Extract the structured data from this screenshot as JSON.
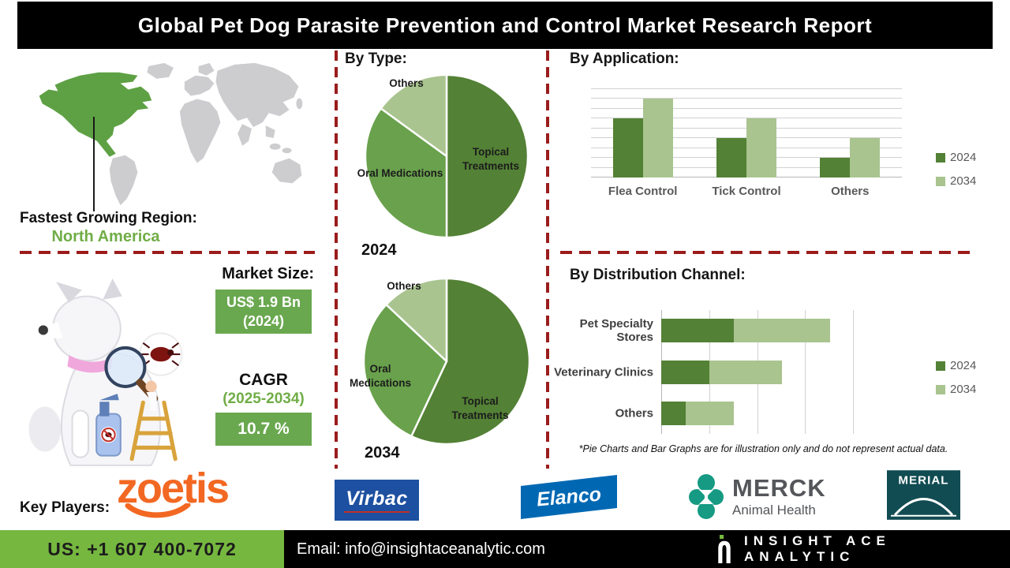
{
  "title": "Global Pet Dog Parasite Prevention and Control Market Research Report",
  "region": {
    "label": "Fastest Growing Region:",
    "value": "North America"
  },
  "market_size": {
    "label": "Market Size:",
    "value": "US$ 1.9 Bn",
    "year": "(2024)"
  },
  "cagr": {
    "label": "CAGR",
    "period": "(2025-2034)",
    "value": "10.7 %"
  },
  "key_players": {
    "label": "Key Players:",
    "companies": [
      "Zoetis",
      "Virbac",
      "Elanco",
      "Merck Animal Health",
      "Merial"
    ],
    "logo_text": {
      "zoetis": "zoetis",
      "virbac": "Virbac",
      "elanco": "Elanco",
      "merck": "MERCK",
      "merck_sub": "Animal Health",
      "merial": "MERIAL"
    }
  },
  "footnote": "*Pie Charts and Bar Graphs are for illustration only and do not represent actual data.",
  "footer": {
    "phone": "US: +1 607 400-7072",
    "email": "Email: info@insightaceanalytic.com",
    "brand": "INSIGHT ACE ANALYTIC"
  },
  "colors": {
    "title_bar": "#000000",
    "divider_red": "#9b1c1c",
    "series_2024": "#538135",
    "series_2034": "#a9c48f",
    "pie_mid_green": "#69a14c",
    "map_highlight_green": "#5ea144",
    "map_gray": "#cdcdd0",
    "value_box_green": "#6aa84f",
    "footer_green": "#76b83f",
    "zoetis_orange": "#f26822",
    "virbac_blue": "#1d50a0",
    "elanco_blue": "#0068b3",
    "merck_teal": "#169a83",
    "merial_teal": "#114c52"
  },
  "chart_data": [
    {
      "type": "pie",
      "title": "By Type:",
      "year_label": "2024",
      "slices": [
        {
          "label": "Topical Treatments",
          "value": 50,
          "color": "#538135"
        },
        {
          "label": "Oral Medications",
          "value": 35,
          "color": "#69a14c"
        },
        {
          "label": "Others",
          "value": 15,
          "color": "#a9c48f"
        }
      ]
    },
    {
      "type": "pie",
      "title": "By Type:",
      "year_label": "2034",
      "slices": [
        {
          "label": "Topical Treatments",
          "value": 57,
          "color": "#538135"
        },
        {
          "label": "Oral Medications",
          "value": 30,
          "color": "#69a14c"
        },
        {
          "label": "Others",
          "value": 13,
          "color": "#a9c48f"
        }
      ]
    },
    {
      "type": "bar",
      "title": "By Application:",
      "categories": [
        "Flea Control",
        "Tick Control",
        "Others"
      ],
      "series": [
        {
          "name": "2024",
          "color": "#538135",
          "values": [
            6,
            4,
            2
          ]
        },
        {
          "name": "2034",
          "color": "#a9c48f",
          "values": [
            8,
            6,
            4
          ]
        }
      ],
      "ylim": [
        0,
        9
      ],
      "gridline_step": 1,
      "legend_position": "right"
    },
    {
      "type": "bar-horizontal-stacked",
      "title": "By Distribution Channel:",
      "categories": [
        "Pet Specialty Stores",
        "Veterinary Clinics",
        "Others"
      ],
      "series": [
        {
          "name": "2024",
          "color": "#538135",
          "values": [
            1.5,
            1,
            0.5
          ]
        },
        {
          "name": "2034",
          "color": "#a9c48f",
          "values": [
            2,
            1.5,
            1
          ]
        }
      ],
      "xlim": [
        0,
        4
      ],
      "gridline_step": 1,
      "legend_position": "right"
    }
  ]
}
